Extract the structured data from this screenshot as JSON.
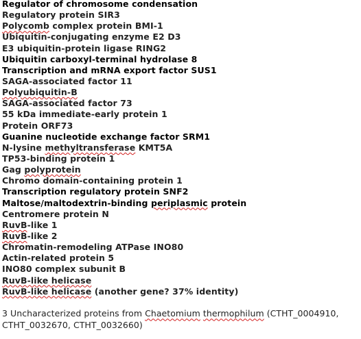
{
  "proteins": [
    {
      "segments": [
        {
          "text": "Regulator of chromosome condensation"
        }
      ],
      "black": true
    },
    {
      "segments": [
        {
          "text": "Regulatory protein SIR3"
        }
      ]
    },
    {
      "segments": [
        {
          "text": "Polycomb",
          "spell": true
        },
        {
          "text": " complex protein BMI-1"
        }
      ]
    },
    {
      "segments": [
        {
          "text": "Ubiquitin-conjugating enzyme E2 D3"
        }
      ]
    },
    {
      "segments": [
        {
          "text": "E3 ubiquitin-protein ligase RING2"
        }
      ]
    },
    {
      "segments": [
        {
          "text": "Ubiquitin carboxyl-terminal hydrolase 8"
        }
      ],
      "black": true
    },
    {
      "segments": [
        {
          "text": "Transcription and mRNA export factor SUS1"
        }
      ],
      "black": true
    },
    {
      "segments": [
        {
          "text": "SAGA-associated factor 11"
        }
      ]
    },
    {
      "segments": [
        {
          "text": "Polyubiquitin-B",
          "spell": true
        }
      ]
    },
    {
      "segments": [
        {
          "text": "SAGA-associated factor 73"
        }
      ]
    },
    {
      "segments": [
        {
          "text": "55 kDa immediate-early protein 1"
        }
      ]
    },
    {
      "segments": [
        {
          "text": "Protein ORF73"
        }
      ]
    },
    {
      "segments": [
        {
          "text": "Guanine nucleotide exchange factor SRM1"
        }
      ],
      "black": true
    },
    {
      "segments": [
        {
          "text": "N-lysine "
        },
        {
          "text": "methyltransferase",
          "spell": true
        },
        {
          "text": " KMT5A"
        }
      ]
    },
    {
      "segments": [
        {
          "text": "TP53-binding protein 1"
        }
      ]
    },
    {
      "segments": [
        {
          "text": "Gag "
        },
        {
          "text": "polyprotein",
          "spell": true
        }
      ]
    },
    {
      "segments": [
        {
          "text": "Chromo domain-containing protein 1"
        }
      ]
    },
    {
      "segments": [
        {
          "text": "Transcription regulatory protein SNF2"
        }
      ],
      "black": true
    },
    {
      "segments": [
        {
          "text": "Maltose/maltodextrin-binding "
        },
        {
          "text": "periplasmic",
          "spell": true
        },
        {
          "text": " protein"
        }
      ],
      "black": true
    },
    {
      "segments": [
        {
          "text": "Centromere protein N"
        }
      ]
    },
    {
      "segments": [
        {
          "text": "RuvB",
          "spell": true
        },
        {
          "text": "-like 1"
        }
      ]
    },
    {
      "segments": [
        {
          "text": "RuvB",
          "spell": true
        },
        {
          "text": "-like 2"
        }
      ]
    },
    {
      "segments": [
        {
          "text": "Chromatin-remodeling ATPase INO80"
        }
      ]
    },
    {
      "segments": [
        {
          "text": "Actin-related protein 5"
        }
      ]
    },
    {
      "segments": [
        {
          "text": "INO80 complex subunit B"
        }
      ]
    },
    {
      "segments": [
        {
          "text": "RuvB-like helicase",
          "spell": true
        }
      ]
    },
    {
      "segments": [
        {
          "text": "RuvB-like helicase",
          "spell": true
        },
        {
          "text": " (another gene? 37% identity)"
        }
      ]
    }
  ],
  "footnote": {
    "segments": [
      {
        "text": "3 Uncharacterized proteins from "
      },
      {
        "text": "Chaetomium",
        "spell": true
      },
      {
        "text": " "
      },
      {
        "text": "thermophilum",
        "spell": true
      },
      {
        "text": " (CTHT_0004910, CTHT_0032670, CTHT_0032660)"
      }
    ]
  }
}
